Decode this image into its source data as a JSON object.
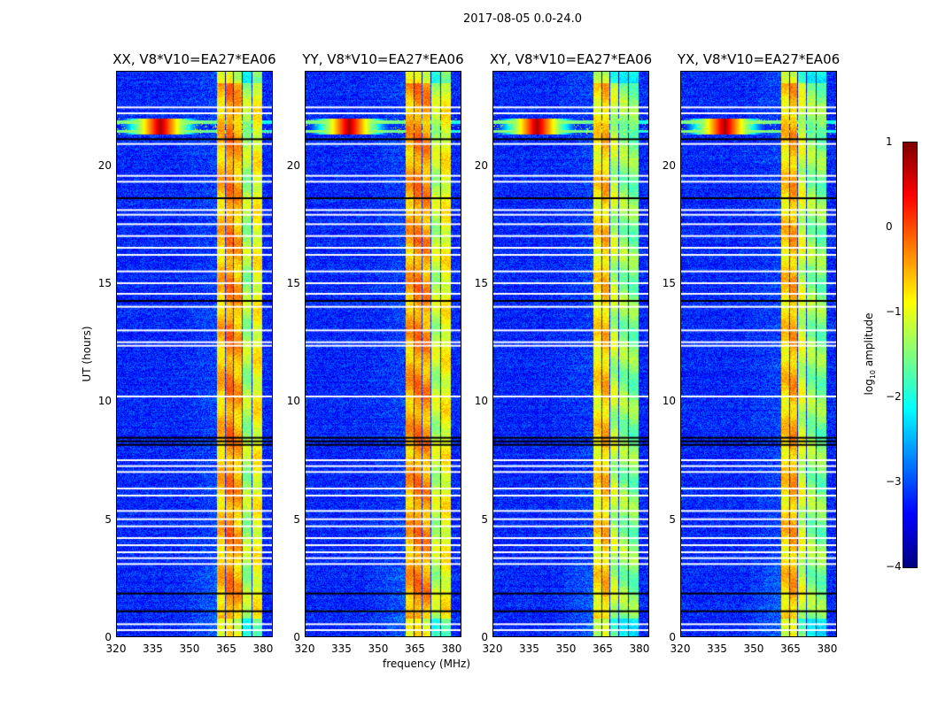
{
  "chart_data": {
    "type": "heatmap",
    "title": "2017-08-05 0.0-24.0",
    "xlabel": "frequency (MHz)",
    "ylabel": "UT (hours)",
    "xlim": [
      320,
      384
    ],
    "ylim": [
      0,
      24
    ],
    "xticks": [
      "320",
      "335",
      "350",
      "365",
      "380"
    ],
    "yticks": [
      "0",
      "5",
      "10",
      "15",
      "20"
    ],
    "panels": [
      {
        "title": "XX, V8*V10=EA27*EA06",
        "band_level": [
          -0.6,
          -0.3,
          -0.5,
          -1.3,
          -0.9
        ]
      },
      {
        "title": "YY, V8*V10=EA27*EA06",
        "band_level": [
          -0.5,
          -0.3,
          -0.4,
          -1.2,
          -0.9
        ]
      },
      {
        "title": "XY, V8*V10=EA27*EA06",
        "band_level": [
          -0.8,
          -0.6,
          -1.2,
          -1.4,
          -1.5
        ]
      },
      {
        "title": "YX, V8*V10=EA27*EA06",
        "band_level": [
          -0.7,
          -0.5,
          -1.1,
          -1.4,
          -1.5
        ]
      }
    ],
    "band_edges_mhz": [
      [
        361,
        364.4
      ],
      [
        364.8,
        367.6
      ],
      [
        368,
        371.2
      ],
      [
        371.6,
        375.2
      ],
      [
        375.6,
        379.6
      ]
    ],
    "background_level": -3.2,
    "rfi": {
      "freq_mhz": 338,
      "ut_hours": [
        21.3,
        22.0
      ],
      "level": 0.8
    },
    "flagged_white_ut": [
      0.3,
      0.55,
      3.1,
      3.35,
      3.6,
      3.9,
      4.2,
      4.7,
      5.0,
      5.35,
      6.0,
      6.3,
      7.0,
      7.25,
      7.5,
      10.2,
      12.35,
      12.5,
      13.0,
      14.0,
      14.55,
      15.0,
      15.5,
      16.2,
      16.5,
      17.0,
      17.5,
      17.9,
      18.1,
      19.3,
      19.55,
      20.9,
      22.2,
      22.45
    ],
    "flagged_black_ut": [
      1.1,
      1.85,
      8.15,
      8.3,
      8.45,
      14.25,
      18.6,
      21.1
    ],
    "colorbar": {
      "label": "log10 amplitude",
      "range": [
        -4,
        1
      ],
      "ticks": [
        "1",
        "0",
        "−1",
        "−2",
        "−3",
        "−4"
      ],
      "colormap": "jet"
    }
  }
}
